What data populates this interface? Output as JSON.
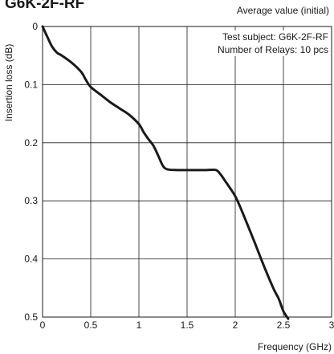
{
  "header": {
    "title": "G6K-2F-RF",
    "subtitle": "Average value (initial)"
  },
  "chart_data": {
    "type": "line",
    "xlabel": "Frequency (GHz)",
    "ylabel": "Insertion loss (dB)",
    "xlim": [
      0,
      3
    ],
    "ylim": [
      0,
      0.5
    ],
    "y_inverted": true,
    "grid": true,
    "x_ticks": [
      {
        "value": 0,
        "label": "0"
      },
      {
        "value": 0.5,
        "label": "0.5"
      },
      {
        "value": 1,
        "label": "1"
      },
      {
        "value": 1.5,
        "label": "1.5"
      },
      {
        "value": 2,
        "label": "2"
      },
      {
        "value": 2.5,
        "label": "2.5"
      },
      {
        "value": 3,
        "label": "3"
      }
    ],
    "y_ticks": [
      {
        "value": 0,
        "label": "0"
      },
      {
        "value": 0.1,
        "label": "0.1"
      },
      {
        "value": 0.2,
        "label": "0.2"
      },
      {
        "value": 0.3,
        "label": "0.3"
      },
      {
        "value": 0.4,
        "label": "0.4"
      },
      {
        "value": 0.5,
        "label": "0.5"
      }
    ],
    "annotations": [
      "Test subject: G6K-2F-RF",
      "Number of Relays: 10 pcs"
    ],
    "series": [
      {
        "color": "#1a1a1a",
        "x": [
          0,
          0.05,
          0.1,
          0.15,
          0.2,
          0.3,
          0.4,
          0.45,
          0.5,
          0.6,
          0.7,
          0.8,
          0.9,
          1.0,
          1.05,
          1.1,
          1.15,
          1.2,
          1.25,
          1.3,
          1.4,
          1.5,
          1.6,
          1.7,
          1.8,
          1.85,
          1.9,
          1.95,
          2.0,
          2.05,
          2.1,
          2.2,
          2.3,
          2.4,
          2.45,
          2.5,
          2.55
        ],
        "y": [
          0,
          0.018,
          0.035,
          0.045,
          0.05,
          0.062,
          0.078,
          0.092,
          0.104,
          0.117,
          0.13,
          0.141,
          0.152,
          0.168,
          0.182,
          0.194,
          0.205,
          0.222,
          0.24,
          0.246,
          0.247,
          0.247,
          0.247,
          0.247,
          0.247,
          0.255,
          0.267,
          0.279,
          0.292,
          0.31,
          0.33,
          0.371,
          0.413,
          0.452,
          0.468,
          0.49,
          0.503
        ]
      }
    ]
  }
}
